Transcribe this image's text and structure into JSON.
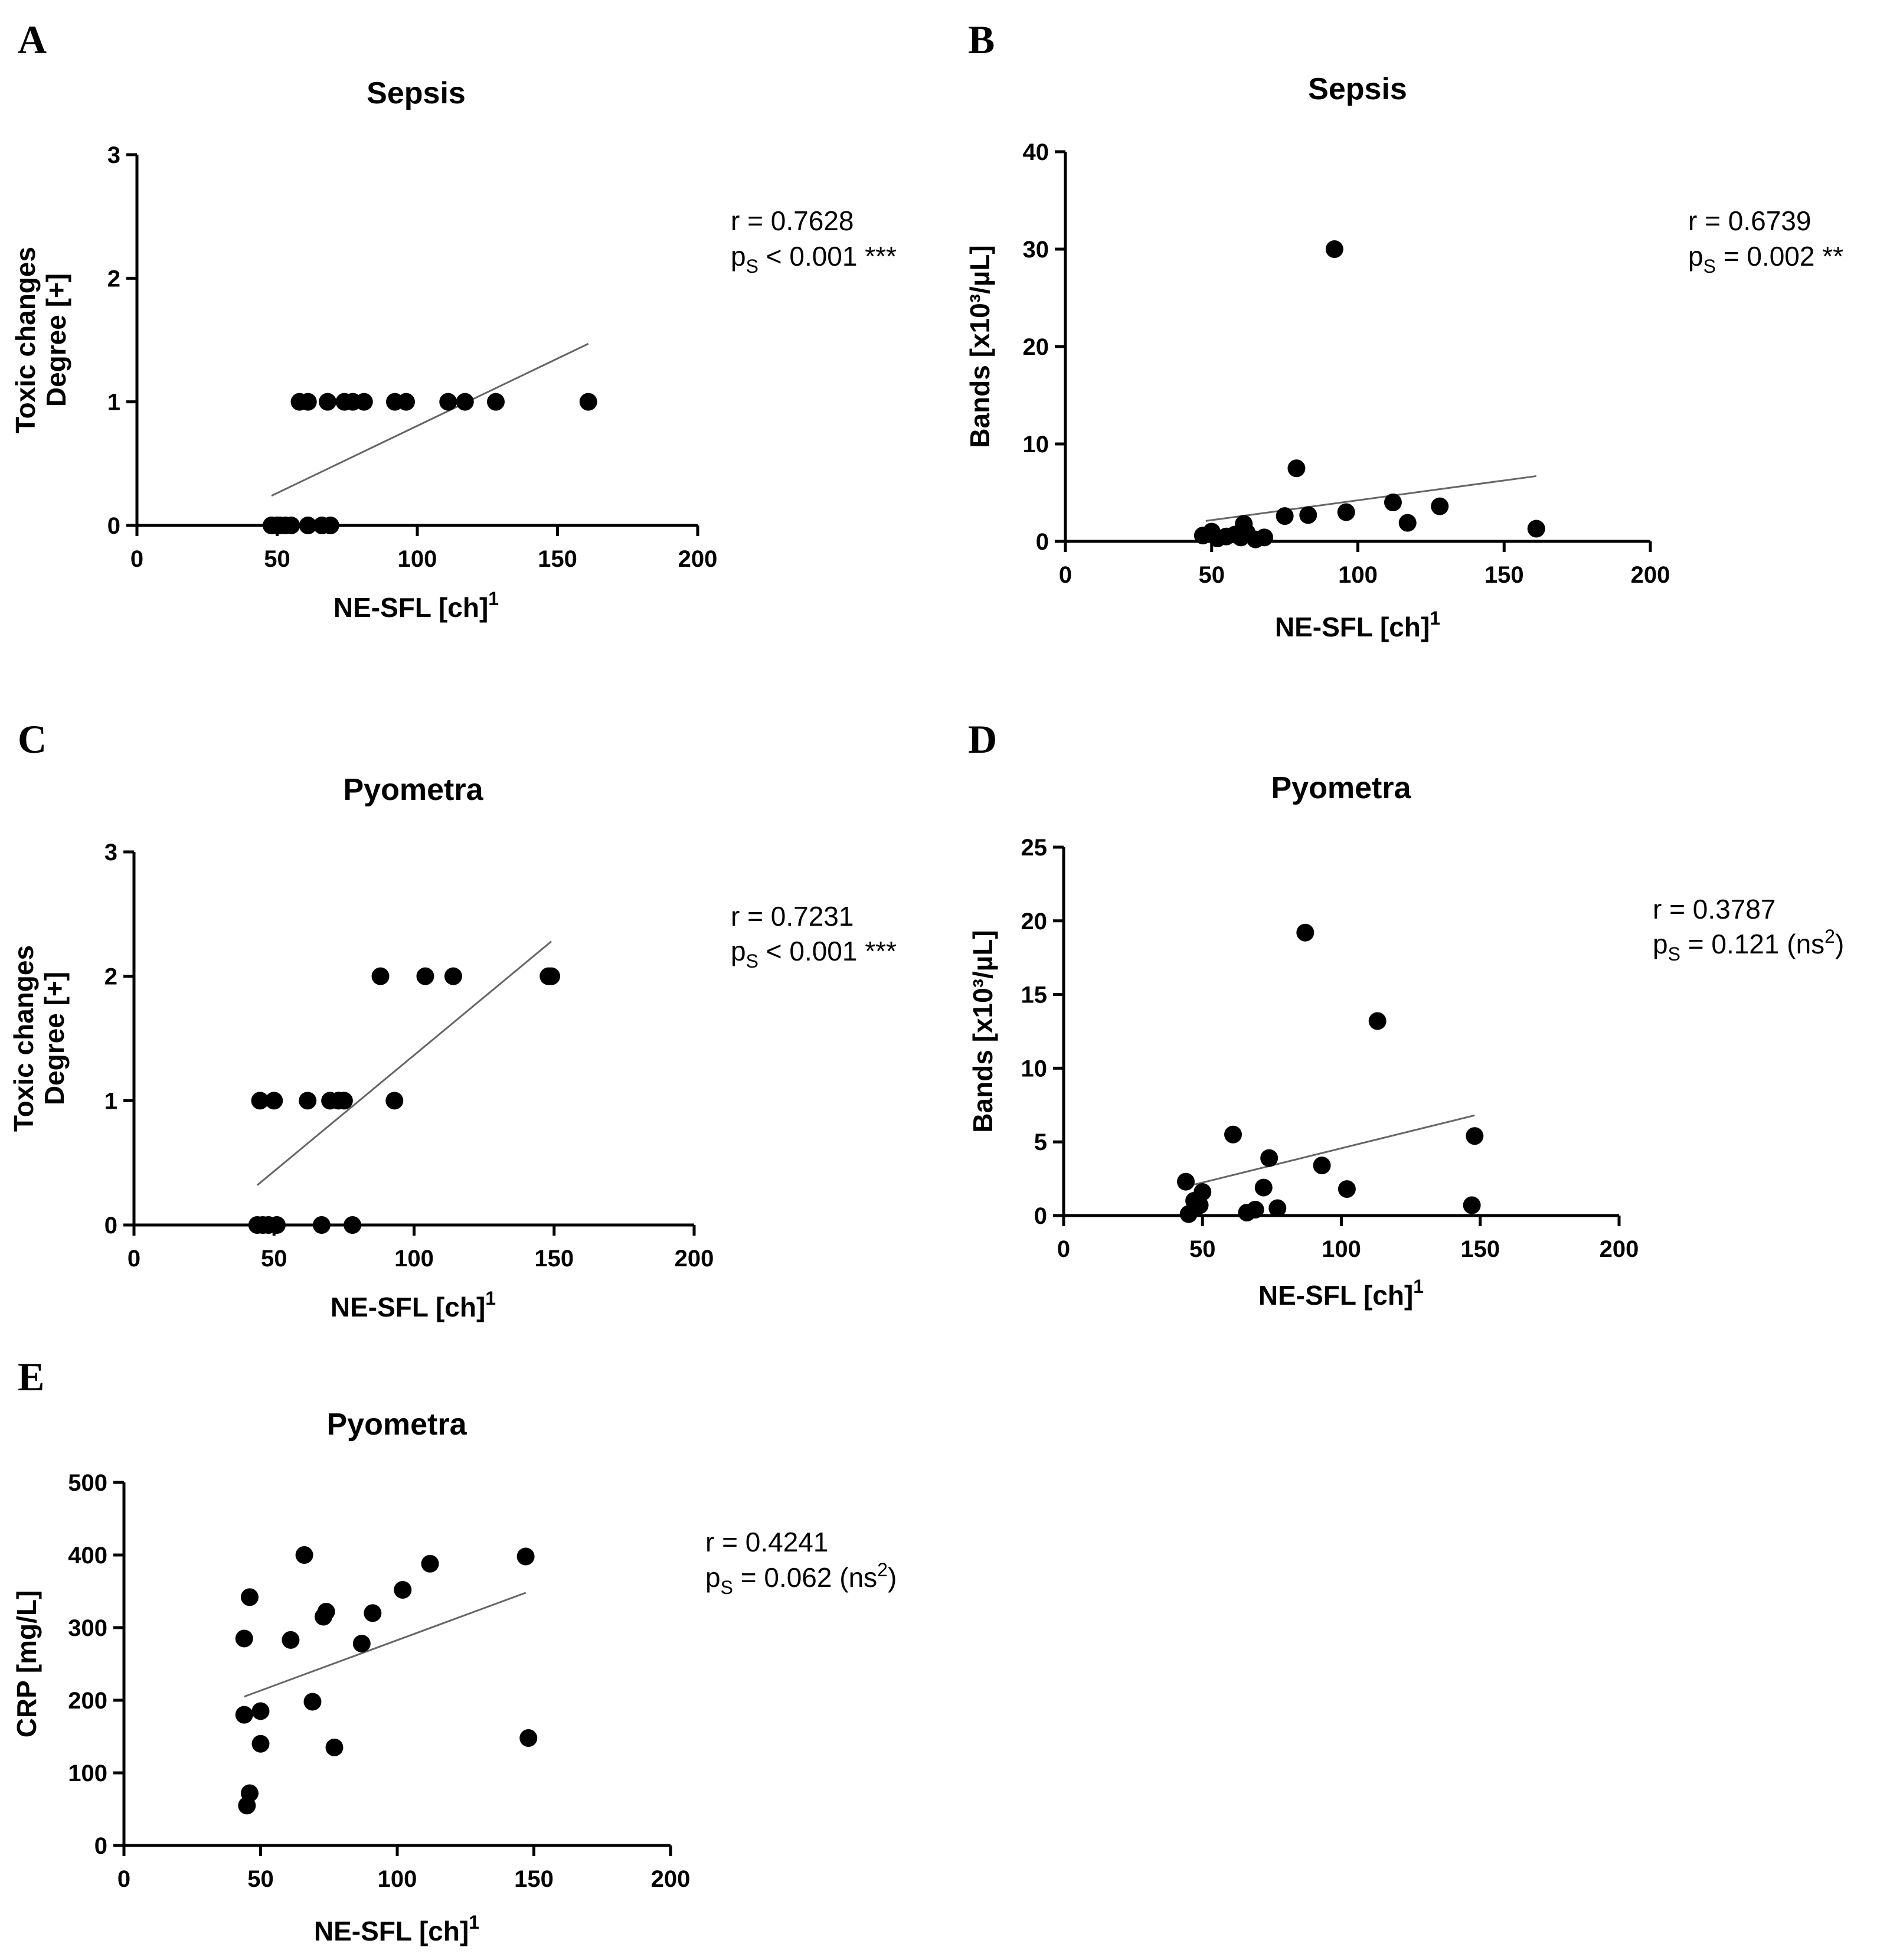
{
  "chart_data": [
    {
      "panel": "A",
      "type": "scatter",
      "title": "Sepsis",
      "xlabel": "NE-SFL [ch]",
      "xlabel_sup": "1",
      "ylabel_lines": [
        "Toxic changes",
        "Degree [+]"
      ],
      "xlim": [
        0,
        200
      ],
      "ylim": [
        0,
        3
      ],
      "xticks": [
        "0",
        "50",
        "100",
        "150",
        "200"
      ],
      "yticks": [
        "0",
        "1",
        "2",
        "3"
      ],
      "stat_r": "r = 0.7628",
      "stat_p_prefix": "p",
      "stat_p_sub": "S",
      "stat_p_rest": " < 0.001 ***",
      "stat_p_ns": "",
      "points": [
        [
          48,
          0
        ],
        [
          50,
          0
        ],
        [
          51,
          0
        ],
        [
          53,
          0
        ],
        [
          55,
          0
        ],
        [
          61,
          0
        ],
        [
          66,
          0
        ],
        [
          69,
          0
        ],
        [
          58,
          1
        ],
        [
          61,
          1
        ],
        [
          68,
          1
        ],
        [
          74,
          1
        ],
        [
          77,
          1
        ],
        [
          81,
          1
        ],
        [
          92,
          1
        ],
        [
          96,
          1
        ],
        [
          111,
          1
        ],
        [
          117,
          1
        ],
        [
          128,
          1
        ],
        [
          161,
          1
        ]
      ],
      "regression": [
        [
          48,
          0.24
        ],
        [
          161,
          1.47
        ]
      ]
    },
    {
      "panel": "B",
      "type": "scatter",
      "title": "Sepsis",
      "xlabel": "NE-SFL [ch]",
      "xlabel_sup": "1",
      "ylabel_lines": [
        "Bands [x10³/µL]"
      ],
      "xlim": [
        0,
        200
      ],
      "ylim": [
        0,
        40
      ],
      "xticks": [
        "0",
        "50",
        "100",
        "150",
        "200"
      ],
      "yticks": [
        "0",
        "10",
        "20",
        "30",
        "40"
      ],
      "stat_r": "r = 0.6739",
      "stat_p_prefix": "p",
      "stat_p_sub": "S",
      "stat_p_rest": " = 0.002 **",
      "stat_p_ns": "",
      "points": [
        [
          47,
          0.6
        ],
        [
          50,
          1.0
        ],
        [
          52,
          0.3
        ],
        [
          55,
          0.5
        ],
        [
          58,
          0.7
        ],
        [
          60,
          0.4
        ],
        [
          61,
          1.8
        ],
        [
          62,
          0.9
        ],
        [
          65,
          0.2
        ],
        [
          68,
          0.4
        ],
        [
          75,
          2.6
        ],
        [
          79,
          7.5
        ],
        [
          83,
          2.7
        ],
        [
          92,
          30
        ],
        [
          96,
          3.0
        ],
        [
          112,
          4.0
        ],
        [
          117,
          1.9
        ],
        [
          128,
          3.6
        ],
        [
          161,
          1.3
        ]
      ],
      "regression": [
        [
          48,
          2.1
        ],
        [
          161,
          6.7
        ]
      ]
    },
    {
      "panel": "C",
      "type": "scatter",
      "title": "Pyometra",
      "xlabel": "NE-SFL [ch]",
      "xlabel_sup": "1",
      "ylabel_lines": [
        "Toxic changes",
        "Degree [+]"
      ],
      "xlim": [
        0,
        200
      ],
      "ylim": [
        0,
        3
      ],
      "xticks": [
        "0",
        "50",
        "100",
        "150",
        "200"
      ],
      "yticks": [
        "0",
        "1",
        "2",
        "3"
      ],
      "stat_r": "r = 0.7231",
      "stat_p_prefix": "p",
      "stat_p_sub": "S",
      "stat_p_rest": " < 0.001 ***",
      "stat_p_ns": "",
      "points": [
        [
          44,
          0
        ],
        [
          46,
          0
        ],
        [
          48,
          0
        ],
        [
          51,
          0
        ],
        [
          67,
          0
        ],
        [
          78,
          0
        ],
        [
          45,
          1
        ],
        [
          50,
          1
        ],
        [
          62,
          1
        ],
        [
          70,
          1
        ],
        [
          73,
          1
        ],
        [
          75,
          1
        ],
        [
          93,
          1
        ],
        [
          88,
          2
        ],
        [
          104,
          2
        ],
        [
          114,
          2
        ],
        [
          148,
          2
        ],
        [
          149,
          2
        ]
      ],
      "regression": [
        [
          44,
          0.32
        ],
        [
          149,
          2.28
        ]
      ]
    },
    {
      "panel": "D",
      "type": "scatter",
      "title": "Pyometra",
      "xlabel": "NE-SFL [ch]",
      "xlabel_sup": "1",
      "ylabel_lines": [
        "Bands [x10³/µL]"
      ],
      "xlim": [
        0,
        200
      ],
      "ylim": [
        0,
        25
      ],
      "xticks": [
        "0",
        "50",
        "100",
        "150",
        "200"
      ],
      "yticks": [
        "0",
        "5",
        "10",
        "15",
        "20",
        "25"
      ],
      "stat_r": "r = 0.3787",
      "stat_p_prefix": "p",
      "stat_p_sub": "S",
      "stat_p_rest": " = 0.121 (ns",
      "stat_p_ns": "2",
      "points": [
        [
          44,
          2.3
        ],
        [
          45,
          0.1
        ],
        [
          47,
          1.0
        ],
        [
          49,
          0.7
        ],
        [
          50,
          1.6
        ],
        [
          61,
          5.5
        ],
        [
          66,
          0.2
        ],
        [
          69,
          0.4
        ],
        [
          72,
          1.9
        ],
        [
          74,
          3.9
        ],
        [
          77,
          0.5
        ],
        [
          87,
          19.2
        ],
        [
          93,
          3.4
        ],
        [
          102,
          1.8
        ],
        [
          113,
          13.2
        ],
        [
          147,
          0.7
        ],
        [
          148,
          5.4
        ]
      ],
      "regression": [
        [
          47,
          2.1
        ],
        [
          148,
          6.8
        ]
      ]
    },
    {
      "panel": "E",
      "type": "scatter",
      "title": "Pyometra",
      "xlabel": "NE-SFL [ch]",
      "xlabel_sup": "1",
      "ylabel_lines": [
        "CRP [mg/L]"
      ],
      "xlim": [
        0,
        200
      ],
      "ylim": [
        0,
        500
      ],
      "xticks": [
        "0",
        "50",
        "100",
        "150",
        "200"
      ],
      "yticks": [
        "0",
        "100",
        "200",
        "300",
        "400",
        "500"
      ],
      "stat_r": "r = 0.4241",
      "stat_p_prefix": "p",
      "stat_p_sub": "S",
      "stat_p_rest": " = 0.062 (ns",
      "stat_p_ns": "2",
      "points": [
        [
          44,
          180
        ],
        [
          44,
          285
        ],
        [
          45,
          55
        ],
        [
          46,
          72
        ],
        [
          46,
          342
        ],
        [
          50,
          185
        ],
        [
          50,
          140
        ],
        [
          61,
          283
        ],
        [
          66,
          400
        ],
        [
          69,
          198
        ],
        [
          73,
          315
        ],
        [
          74,
          322
        ],
        [
          77,
          135
        ],
        [
          87,
          278
        ],
        [
          91,
          320
        ],
        [
          102,
          352
        ],
        [
          112,
          388
        ],
        [
          147,
          398
        ],
        [
          148,
          148
        ]
      ],
      "regression": [
        [
          44,
          205
        ],
        [
          147,
          348
        ]
      ]
    }
  ]
}
